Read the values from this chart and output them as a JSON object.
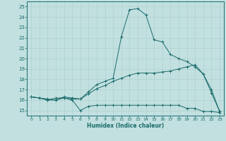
{
  "xlabel": "Humidex (Indice chaleur)",
  "xlim": [
    -0.5,
    23.5
  ],
  "ylim": [
    14.5,
    25.5
  ],
  "xticks": [
    0,
    1,
    2,
    3,
    4,
    5,
    6,
    7,
    8,
    9,
    10,
    11,
    12,
    13,
    14,
    15,
    16,
    17,
    18,
    19,
    20,
    21,
    22,
    23
  ],
  "yticks": [
    15,
    16,
    17,
    18,
    19,
    20,
    21,
    22,
    23,
    24,
    25
  ],
  "bg_color": "#c2e0e0",
  "line_color": "#1a6b6b",
  "grid_color": "#b0d0d0",
  "curve1_x": [
    0,
    1,
    2,
    3,
    4,
    5,
    6,
    7,
    8,
    9,
    10,
    11,
    12,
    13,
    14,
    15,
    16,
    17,
    18,
    19,
    20,
    21,
    22,
    23
  ],
  "curve1_y": [
    16.3,
    16.2,
    16.0,
    16.2,
    16.2,
    16.0,
    15.0,
    15.4,
    15.5,
    15.5,
    15.5,
    15.5,
    15.5,
    15.5,
    15.5,
    15.5,
    15.5,
    15.5,
    15.5,
    15.2,
    15.2,
    14.9,
    14.9,
    14.8
  ],
  "curve2_x": [
    0,
    1,
    2,
    3,
    4,
    5,
    6,
    7,
    8,
    9,
    10,
    11,
    12,
    13,
    14,
    15,
    16,
    17,
    18,
    19,
    20,
    21,
    22,
    23
  ],
  "curve2_y": [
    16.3,
    16.2,
    16.1,
    16.0,
    16.3,
    16.2,
    16.1,
    16.8,
    17.5,
    17.8,
    18.1,
    22.1,
    24.7,
    24.8,
    24.2,
    21.8,
    21.6,
    20.4,
    20.0,
    19.7,
    19.2,
    18.5,
    16.7,
    14.9
  ],
  "curve3_x": [
    0,
    1,
    2,
    3,
    4,
    5,
    6,
    7,
    8,
    9,
    10,
    11,
    12,
    13,
    14,
    15,
    16,
    17,
    18,
    19,
    20,
    21,
    22,
    23
  ],
  "curve3_y": [
    16.3,
    16.2,
    16.0,
    16.0,
    16.2,
    16.1,
    16.1,
    16.6,
    17.1,
    17.4,
    17.8,
    18.1,
    18.4,
    18.6,
    18.6,
    18.6,
    18.7,
    18.8,
    19.0,
    19.2,
    19.4,
    18.5,
    17.0,
    14.9
  ]
}
